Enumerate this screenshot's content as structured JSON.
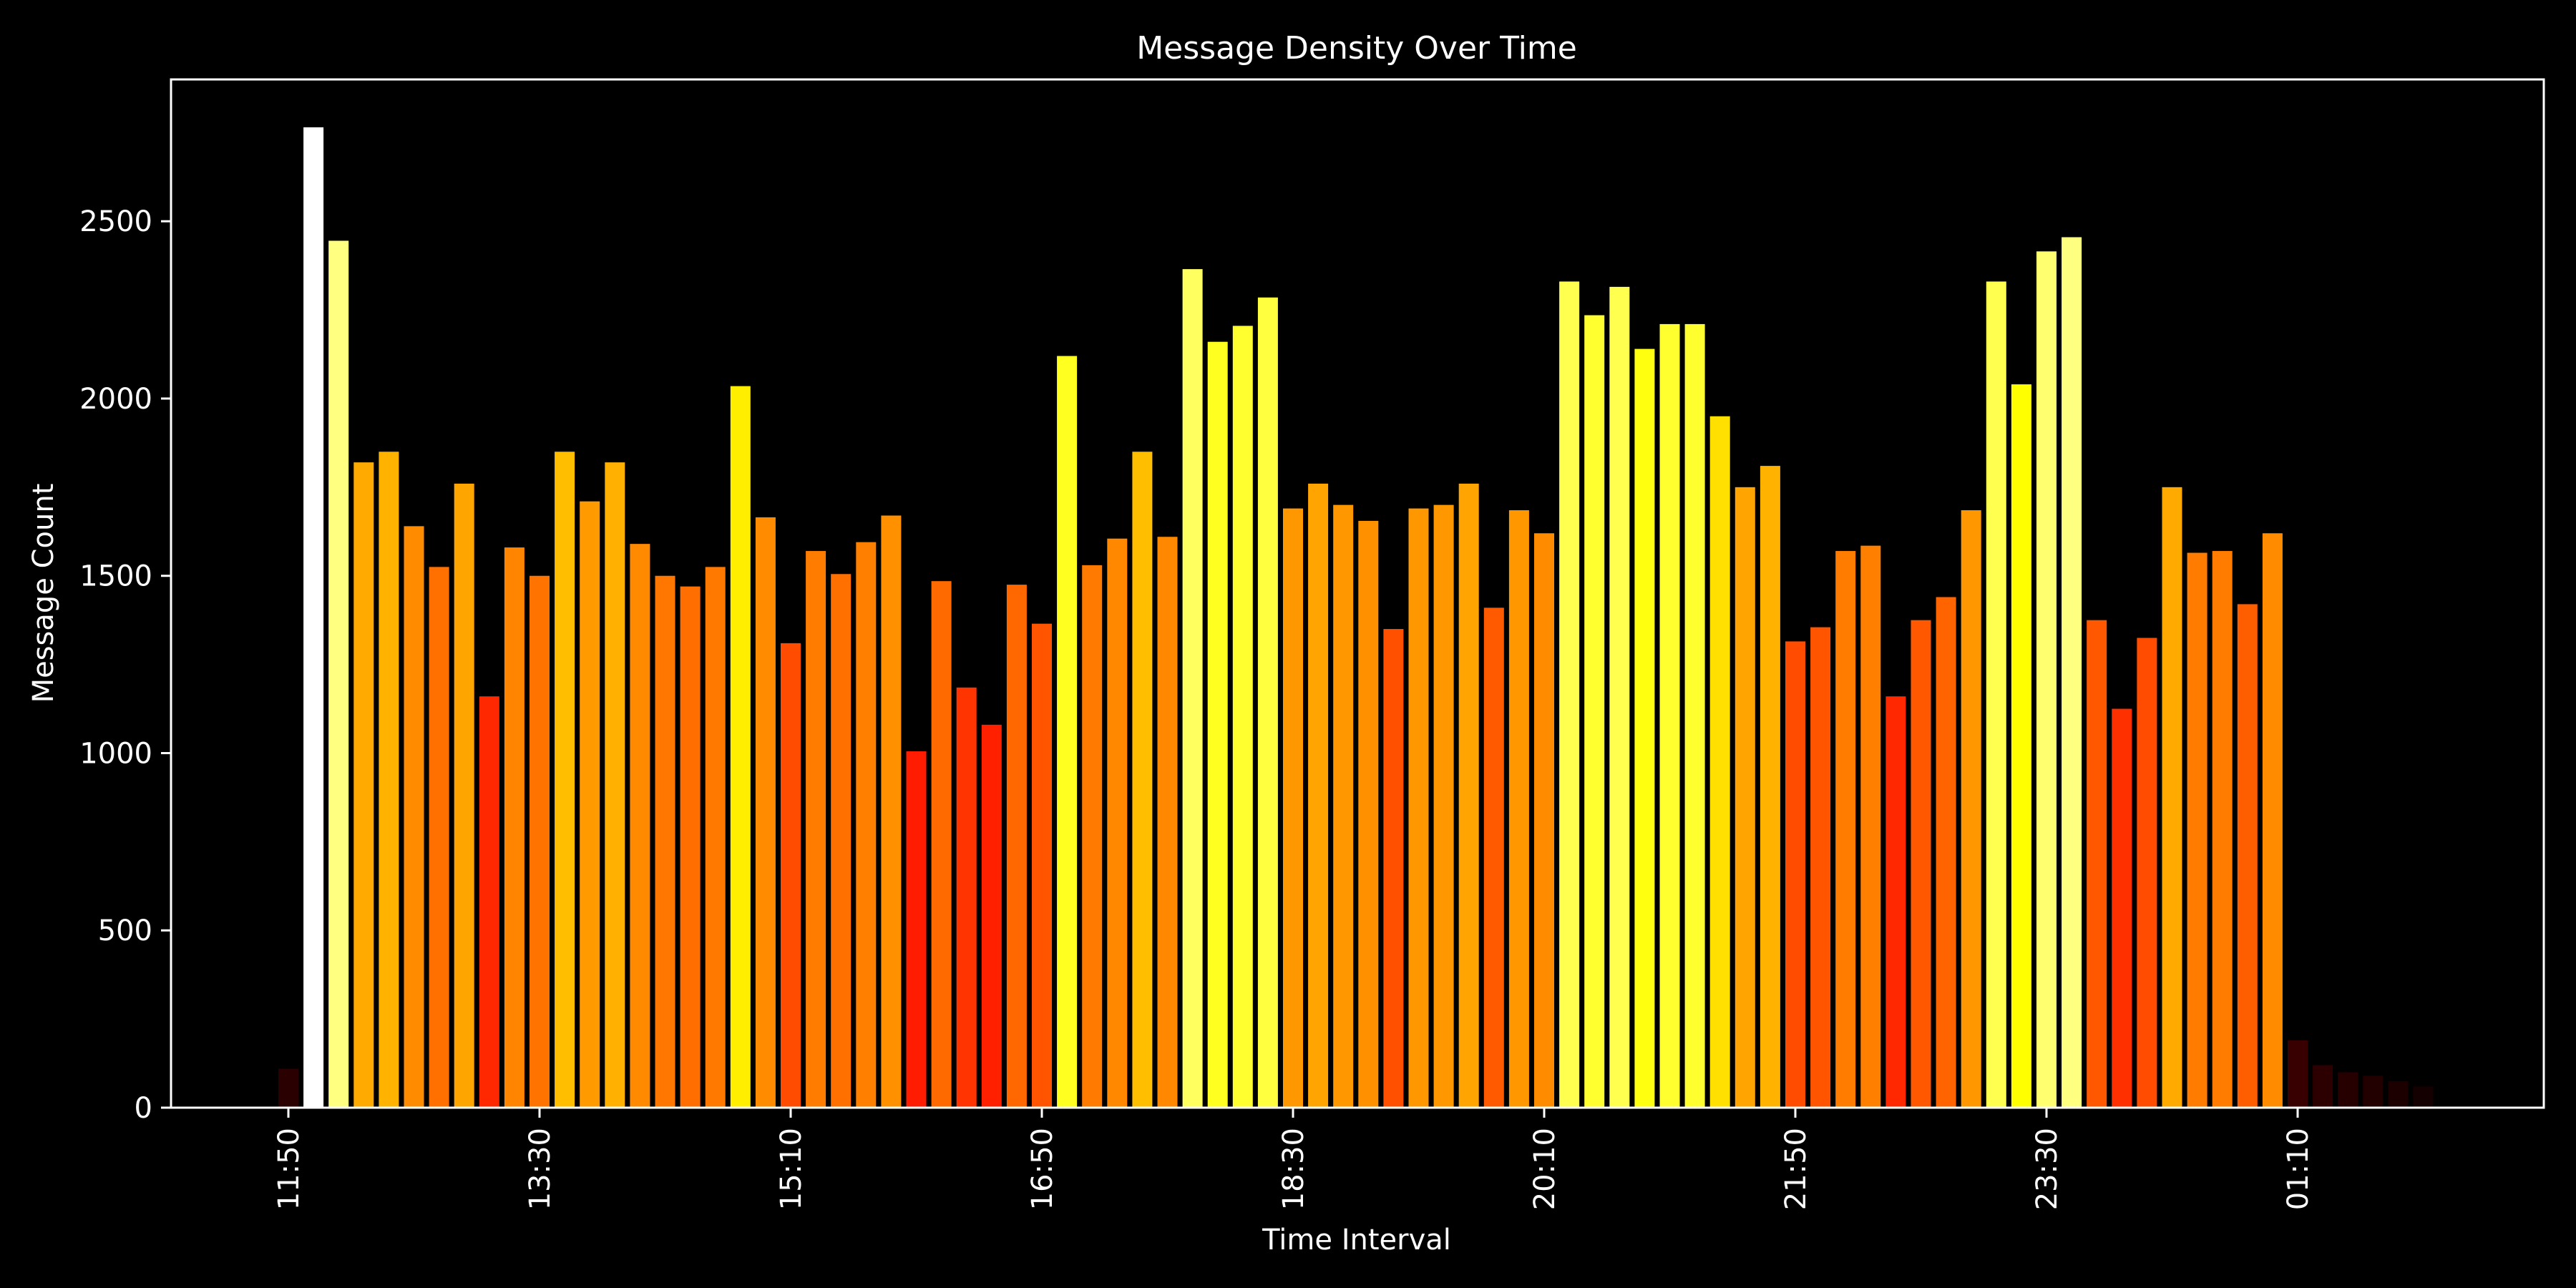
{
  "chart_data": {
    "type": "bar",
    "title": "Message Density Over Time",
    "xlabel": "Time Interval",
    "ylabel": "Message Count",
    "ylim": [
      0,
      2900
    ],
    "yticks": [
      0,
      500,
      1000,
      1500,
      2000,
      2500
    ],
    "xtick_labels": [
      {
        "index": 0,
        "label": "11:50"
      },
      {
        "index": 10,
        "label": "13:30"
      },
      {
        "index": 20,
        "label": "15:10"
      },
      {
        "index": 30,
        "label": "16:50"
      },
      {
        "index": 40,
        "label": "18:30"
      },
      {
        "index": 50,
        "label": "20:10"
      },
      {
        "index": 60,
        "label": "21:50"
      },
      {
        "index": 70,
        "label": "23:30"
      },
      {
        "index": 80,
        "label": "01:10"
      }
    ],
    "values": [
      110,
      2765,
      2445,
      1820,
      1850,
      1640,
      1525,
      1760,
      1160,
      1580,
      1500,
      1850,
      1710,
      1820,
      1590,
      1500,
      1470,
      1525,
      2035,
      1665,
      1310,
      1570,
      1505,
      1595,
      1670,
      1005,
      1485,
      1185,
      1080,
      1475,
      1365,
      2120,
      1530,
      1605,
      1850,
      1610,
      2365,
      2160,
      2205,
      2285,
      1690,
      1760,
      1700,
      1655,
      1350,
      1690,
      1700,
      1760,
      1410,
      1685,
      1620,
      2330,
      2235,
      2315,
      2140,
      2210,
      2210,
      1950,
      1750,
      1810,
      1315,
      1355,
      1570,
      1585,
      1160,
      1375,
      1440,
      1685,
      2330,
      2040,
      2415,
      2455,
      1375,
      1125,
      1325,
      1750,
      1565,
      1570,
      1420,
      1620,
      190,
      120,
      100,
      90,
      75,
      60
    ],
    "colors": [
      "#2a0000",
      "#ffffff",
      "#ffff80",
      "#ffaa00",
      "#ffb300",
      "#ff8c00",
      "#ff7000",
      "#ffa500",
      "#ff2800",
      "#ff8400",
      "#ff7400",
      "#ffbf00",
      "#ff9a00",
      "#ffb000",
      "#ff8a00",
      "#ff7600",
      "#ff6e00",
      "#ff7800",
      "#ffee00",
      "#ff8c00",
      "#ff4c00",
      "#ff7c00",
      "#ff7000",
      "#ff8000",
      "#ff9000",
      "#ff1c00",
      "#ff6a00",
      "#ff3400",
      "#ff2000",
      "#ff6800",
      "#ff5400",
      "#ffff20",
      "#ff7a00",
      "#ff8800",
      "#ffbf00",
      "#ff8800",
      "#ffff60",
      "#ffff20",
      "#ffff30",
      "#ffff40",
      "#ff9800",
      "#ffa400",
      "#ff9800",
      "#ff9000",
      "#ff5000",
      "#ff9800",
      "#ff9800",
      "#ffa400",
      "#ff5a00",
      "#ff9800",
      "#ff8c00",
      "#ffff50",
      "#ffff30",
      "#ffff50",
      "#ffff10",
      "#ffff30",
      "#ffff30",
      "#ffe000",
      "#ffa400",
      "#ffb300",
      "#ff4c00",
      "#ff5400",
      "#ff7c00",
      "#ff8000",
      "#ff2800",
      "#ff5800",
      "#ff6400",
      "#ff9800",
      "#ffff50",
      "#ffff00",
      "#ffff70",
      "#ffff80",
      "#ff5800",
      "#ff3000",
      "#ff4c00",
      "#ffaa00",
      "#ff7c00",
      "#ff7c00",
      "#ff5e00",
      "#ff8c00",
      "#380000",
      "#2c0000",
      "#260000",
      "#220000",
      "#1c0000",
      "#140000"
    ],
    "grid": false,
    "legend": "none"
  }
}
